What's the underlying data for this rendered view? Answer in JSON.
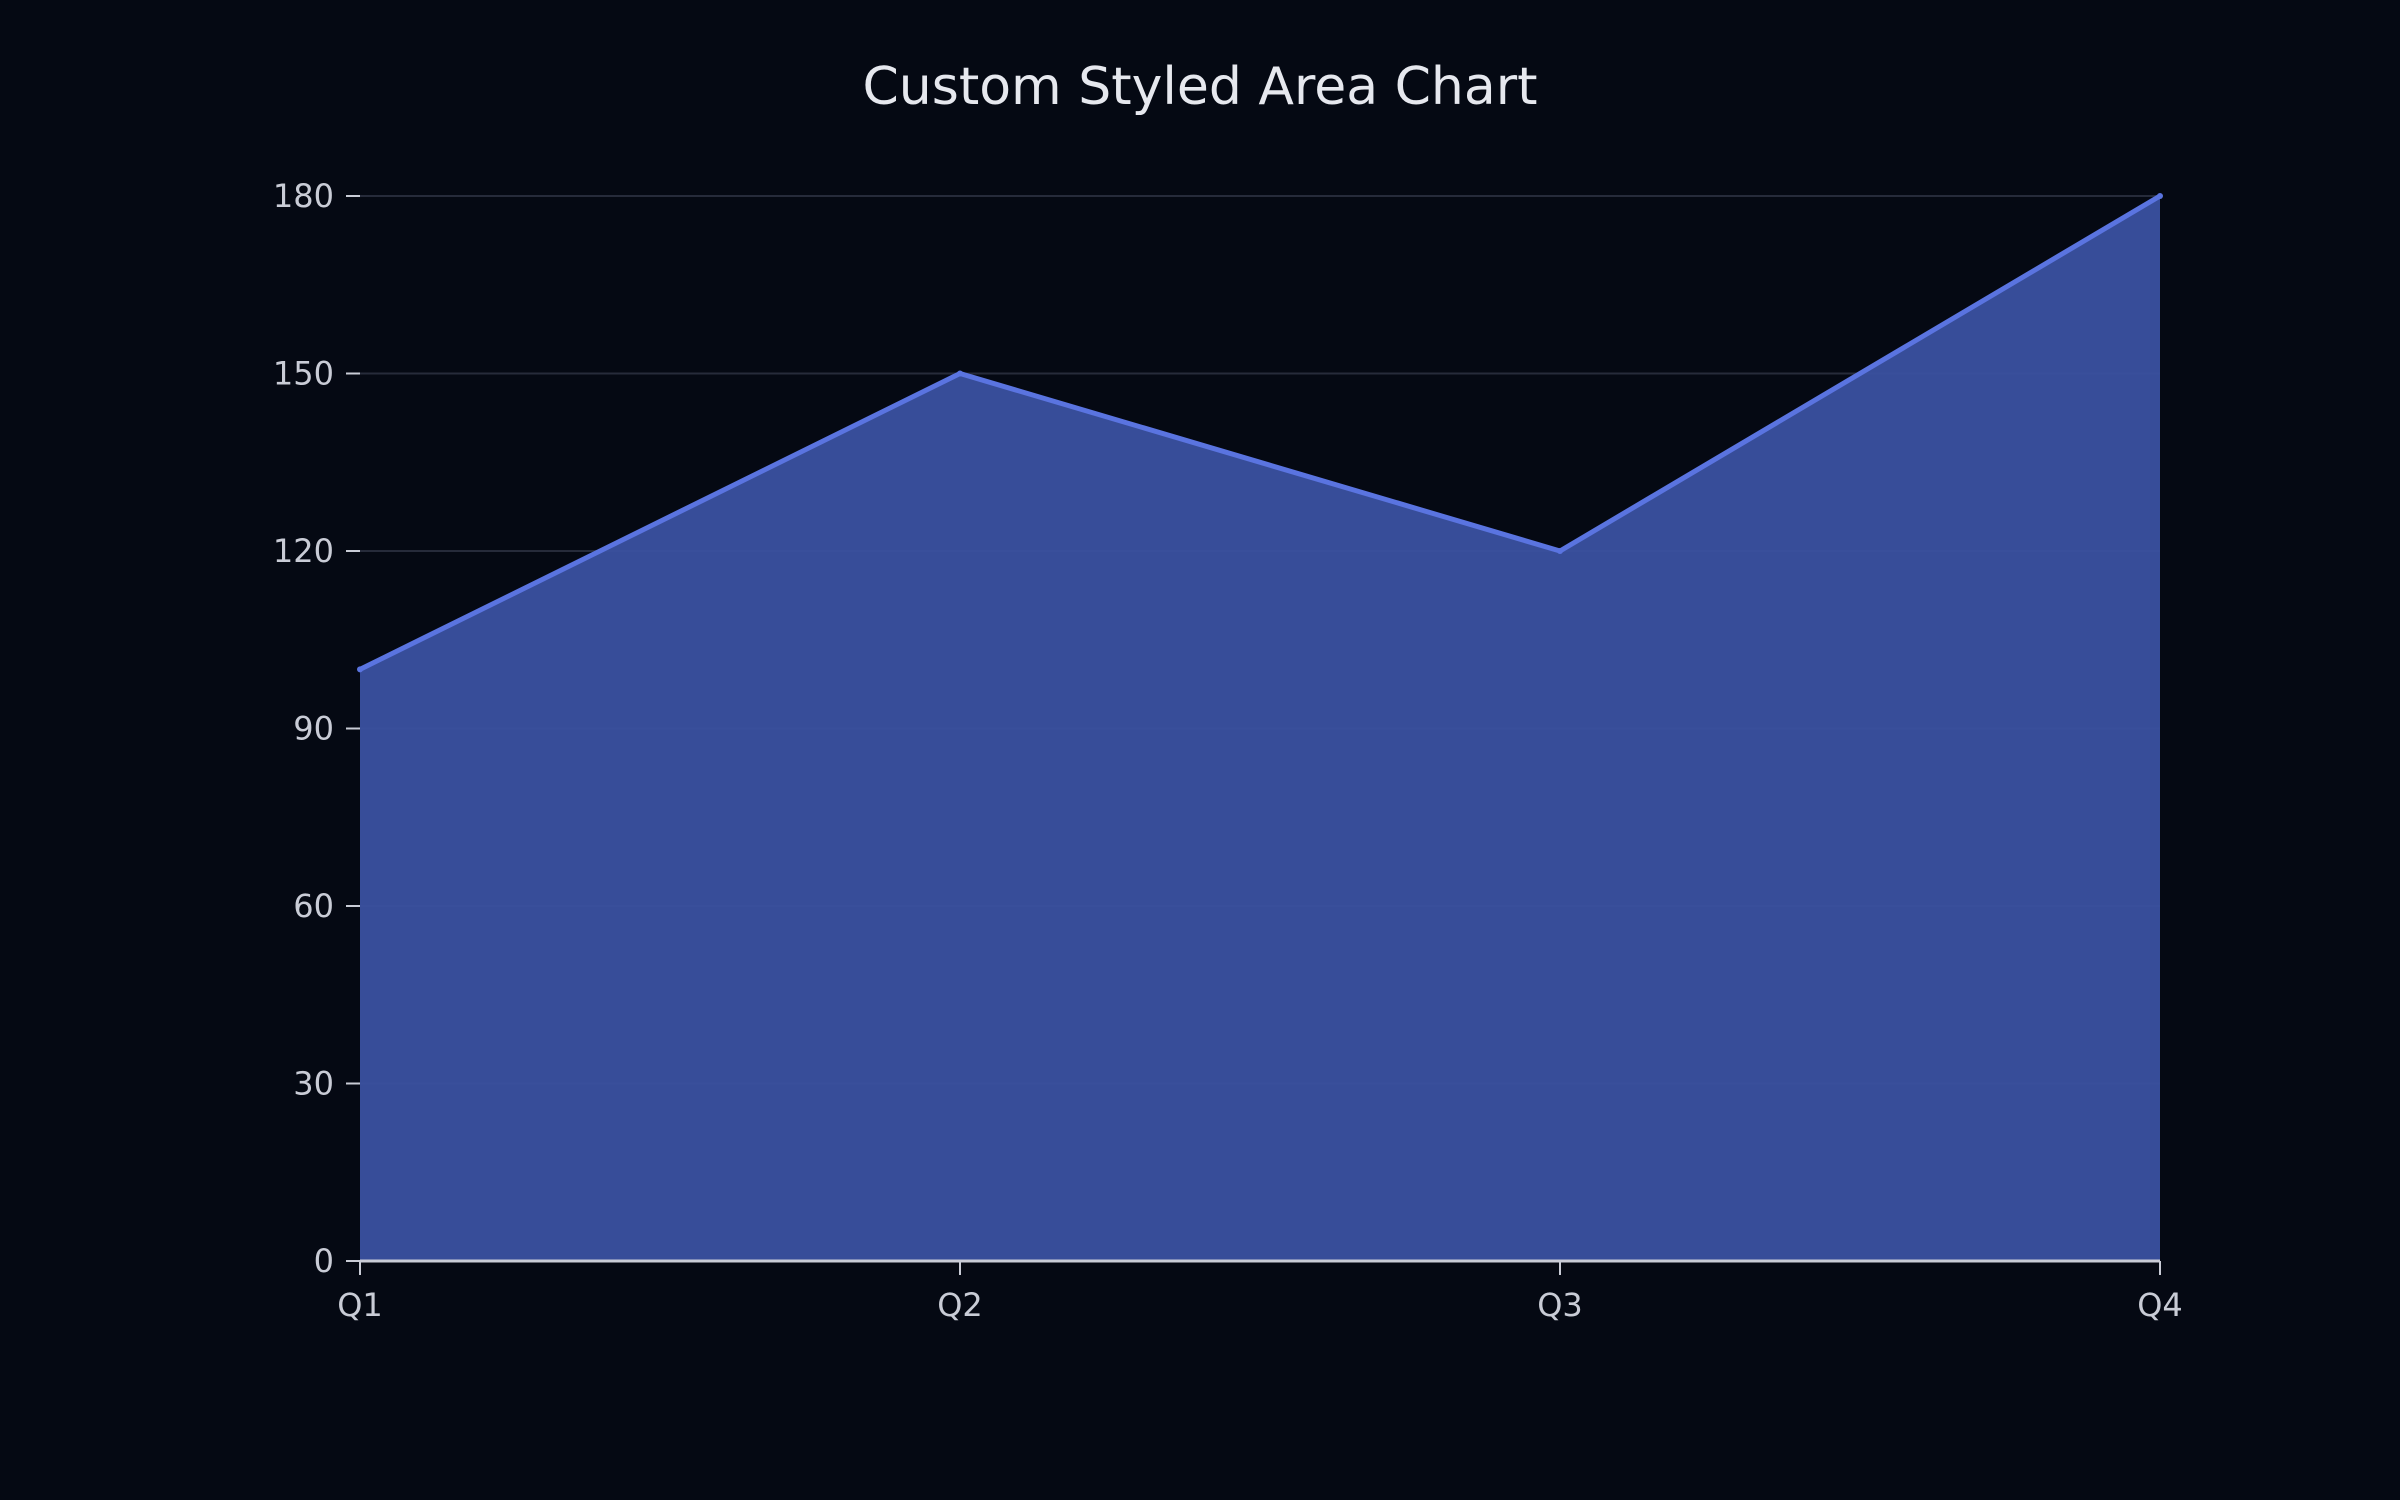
{
  "chart_data": {
    "type": "area",
    "title": "Custom Styled Area Chart",
    "categories": [
      "Q1",
      "Q2",
      "Q3",
      "Q4"
    ],
    "series": [
      {
        "values": [
          100,
          150,
          120,
          180
        ]
      }
    ],
    "xlabel": "",
    "ylabel": "",
    "ylim": [
      0,
      180
    ],
    "yticks": [
      0,
      30,
      60,
      90,
      120,
      150,
      180
    ],
    "grid": true,
    "legend": "none",
    "colors": {
      "background": "#050913",
      "fill": "#3a51a0",
      "line": "#5a74e0",
      "grid": "#262b3a",
      "axis": "#c9ccd6",
      "text": "#e6e8ee"
    }
  }
}
